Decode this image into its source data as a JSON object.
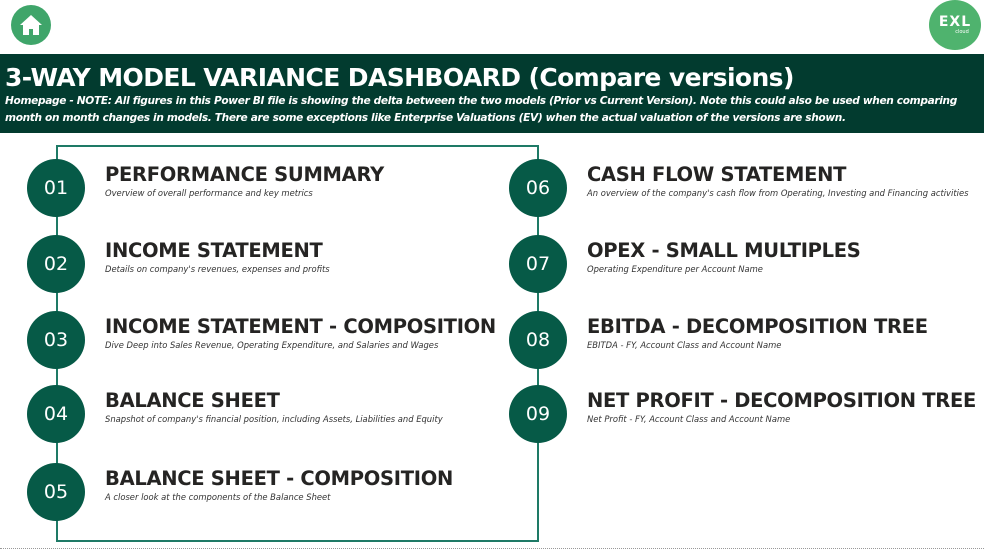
{
  "header": {
    "title": "3-WAY MODEL VARIANCE DASHBOARD (Compare versions)",
    "note": "Homepage - NOTE: All figures in this Power BI file is showing the delta between the two models (Prior vs Current Version). Note this could also be used when comparing month on month changes in models. There are some exceptions like Enterprise Valuations (EV) when the actual valuation of the versions are shown.",
    "home_icon": "home-icon",
    "logo_text": "EXL",
    "logo_sub": "cloud"
  },
  "colors": {
    "banner": "#023b2f",
    "circle": "#065a47",
    "frame": "#1e7a66",
    "home": "#3fa56a"
  },
  "left_items": [
    {
      "num": "01",
      "title": "PERFORMANCE SUMMARY",
      "desc": "Overview of overall performance and key metrics"
    },
    {
      "num": "02",
      "title": "INCOME STATEMENT",
      "desc": "Details on company's revenues, expenses and profits"
    },
    {
      "num": "03",
      "title": "INCOME STATEMENT - COMPOSITION",
      "desc": "Dive Deep into Sales Revenue, Operating Expenditure, and Salaries and Wages"
    },
    {
      "num": "04",
      "title": "BALANCE SHEET",
      "desc": "Snapshot of company's financial position, including Assets, Liabilities and Equity"
    },
    {
      "num": "05",
      "title": "BALANCE SHEET - COMPOSITION",
      "desc": "A closer look at the components of the Balance Sheet"
    }
  ],
  "right_items": [
    {
      "num": "06",
      "title": "CASH FLOW STATEMENT",
      "desc": "An overview of the company's cash flow from Operating, Investing and Financing activities"
    },
    {
      "num": "07",
      "title": "OPEX - SMALL MULTIPLES",
      "desc": "Operating Expenditure per Account Name"
    },
    {
      "num": "08",
      "title": "EBITDA - DECOMPOSITION TREE",
      "desc": "EBITDA - FY, Account Class and Account Name"
    },
    {
      "num": "09",
      "title": "NET PROFIT - DECOMPOSITION TREE",
      "desc": "Net Profit - FY, Account Class and Account Name"
    }
  ]
}
